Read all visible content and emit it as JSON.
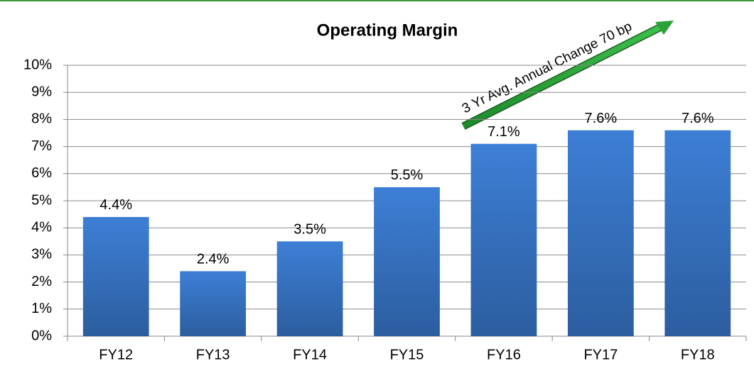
{
  "chart_data": {
    "type": "bar",
    "title": "Operating Margin",
    "categories": [
      "FY12",
      "FY13",
      "FY14",
      "FY15",
      "FY16",
      "FY17",
      "FY18"
    ],
    "values": [
      4.4,
      2.4,
      3.5,
      5.5,
      7.1,
      7.6,
      7.6
    ],
    "value_labels": [
      "4.4%",
      "2.4%",
      "3.5%",
      "5.5%",
      "7.1%",
      "7.6%",
      "7.6%"
    ],
    "color": "#3a78c9",
    "ylim": [
      0,
      10
    ],
    "yticks": [
      {
        "value": 0,
        "label": "0%"
      },
      {
        "value": 1,
        "label": "1%"
      },
      {
        "value": 2,
        "label": "2%"
      },
      {
        "value": 3,
        "label": "3%"
      },
      {
        "value": 4,
        "label": "4%"
      },
      {
        "value": 5,
        "label": "5%"
      },
      {
        "value": 6,
        "label": "6%"
      },
      {
        "value": 7,
        "label": "7%"
      },
      {
        "value": 8,
        "label": "8%"
      },
      {
        "value": 9,
        "label": "9%"
      },
      {
        "value": 10,
        "label": "10%"
      }
    ],
    "grid": true,
    "annotation": "3 Yr Avg. Annual Change 70 bp"
  }
}
